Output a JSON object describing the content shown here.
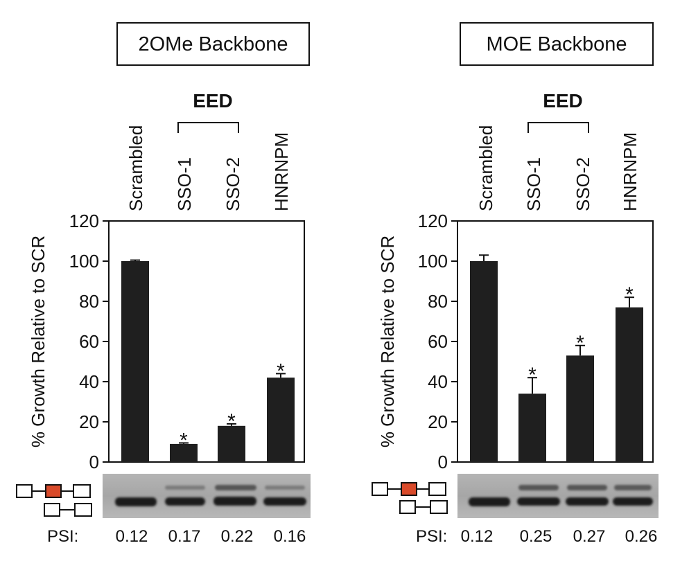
{
  "chart_data": [
    {
      "type": "bar",
      "title": "2OMe Backbone",
      "group_label": "EED",
      "ylabel": "% Growth Relative to SCR",
      "ylim": [
        0,
        120
      ],
      "yticks": [
        0,
        20,
        40,
        60,
        80,
        100,
        120
      ],
      "categories": [
        "Scrambled",
        "SSO-1",
        "SSO-2",
        "HNRNPM"
      ],
      "values": [
        100,
        9,
        18,
        42
      ],
      "errors": [
        0.5,
        0.5,
        1,
        2
      ],
      "significant": [
        false,
        true,
        true,
        true
      ],
      "significance_marker": "*",
      "bar_color": "#1f1f1f",
      "psi_label": "PSI:",
      "psi": [
        "0.12",
        "0.17",
        "0.22",
        "0.16"
      ]
    },
    {
      "type": "bar",
      "title": "MOE Backbone",
      "group_label": "EED",
      "ylabel": "% Growth Relative to SCR",
      "ylim": [
        0,
        120
      ],
      "yticks": [
        0,
        20,
        40,
        60,
        80,
        100,
        120
      ],
      "categories": [
        "Scrambled",
        "SSO-1",
        "SSO-2",
        "HNRNPM"
      ],
      "values": [
        100,
        34,
        53,
        77
      ],
      "errors": [
        3,
        8,
        5,
        5
      ],
      "significant": [
        false,
        true,
        true,
        true
      ],
      "significance_marker": "*",
      "bar_color": "#1f1f1f",
      "psi_label": "PSI:",
      "psi": [
        "0.12",
        "0.25",
        "0.27",
        "0.26"
      ]
    }
  ],
  "colors": {
    "exon_highlight": "#d94a2a",
    "gel_background": "#a8a8a8",
    "gel_band": "#1a1a1a"
  }
}
